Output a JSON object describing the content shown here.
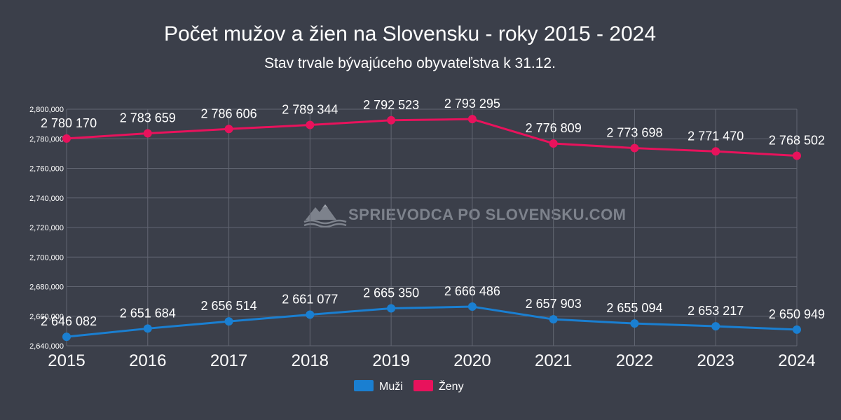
{
  "chart_data": {
    "type": "line",
    "title": "Počet mužov a žien na Slovensku - roky 2015 - 2024",
    "subtitle": "Stav trvale bývajúceho obyvateľstva k 31.12.",
    "x": [
      "2015",
      "2016",
      "2017",
      "2018",
      "2019",
      "2020",
      "2021",
      "2022",
      "2023",
      "2024"
    ],
    "ylim": [
      2640000,
      2800000
    ],
    "yticks": [
      2640000,
      2660000,
      2680000,
      2700000,
      2720000,
      2740000,
      2760000,
      2780000,
      2800000
    ],
    "ytick_labels": [
      "2,640,000",
      "2,660,000",
      "2,680,000",
      "2,700,000",
      "2,720,000",
      "2,740,000",
      "2,760,000",
      "2,780,000",
      "2,800,000"
    ],
    "grid": true,
    "legend_position": "bottom-center",
    "series": [
      {
        "name": "Muži",
        "color": "#1a7fd1",
        "values": [
          2646082,
          2651684,
          2656514,
          2661077,
          2665350,
          2666486,
          2657903,
          2655094,
          2653217,
          2650949
        ],
        "labels": [
          "2 646 082",
          "2 651 684",
          "2 656 514",
          "2 661 077",
          "2 665 350",
          "2 666 486",
          "2 657 903",
          "2 655 094",
          "2 653 217",
          "2 650 949"
        ]
      },
      {
        "name": "Ženy",
        "color": "#e8125c",
        "values": [
          2780170,
          2783659,
          2786606,
          2789344,
          2792523,
          2793295,
          2776809,
          2773698,
          2771470,
          2768502
        ],
        "labels": [
          "2 780 170",
          "2 783 659",
          "2 786 606",
          "2 789 344",
          "2 792 523",
          "2 793 295",
          "2 776 809",
          "2 773 698",
          "2 771 470",
          "2 768 502"
        ]
      }
    ],
    "watermark": "SPRIEVODCA PO SLOVENSKU.COM"
  }
}
